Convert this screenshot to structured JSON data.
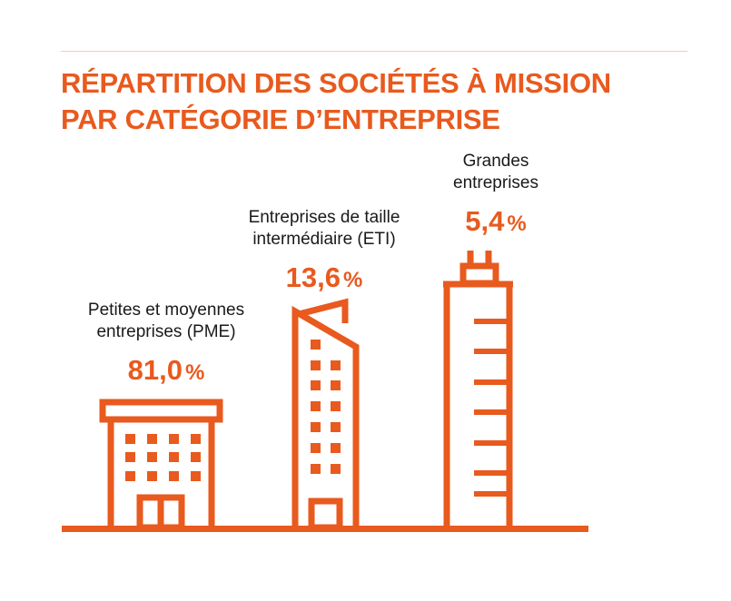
{
  "title": {
    "line1": "RÉPARTITION DES SOCIÉTÉS À MISSION",
    "line2": "PAR CATÉGORIE D’ENTREPRISE"
  },
  "colors": {
    "accent": "#e85a1e",
    "text": "#1a1a1a",
    "rule": "#f3c9b0"
  },
  "chart_data": {
    "type": "bar",
    "unit": "%",
    "categories": [
      [
        "Petites et moyennes",
        "entreprises (PME)"
      ],
      [
        "Entreprises de taille",
        "intermédiaire (ETI)"
      ],
      [
        "Grandes",
        "entreprises"
      ]
    ],
    "values": [
      81.0,
      13.6,
      5.4
    ],
    "value_labels": [
      "81,0",
      "13,6",
      "5,4"
    ],
    "icons": [
      "small-building-icon",
      "mid-rise-building-icon",
      "skyscraper-icon"
    ]
  }
}
